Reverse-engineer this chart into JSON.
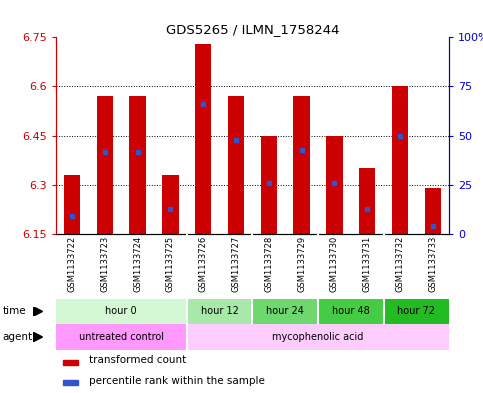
{
  "title": "GDS5265 / ILMN_1758244",
  "samples": [
    "GSM1133722",
    "GSM1133723",
    "GSM1133724",
    "GSM1133725",
    "GSM1133726",
    "GSM1133727",
    "GSM1133728",
    "GSM1133729",
    "GSM1133730",
    "GSM1133731",
    "GSM1133732",
    "GSM1133733"
  ],
  "bar_tops": [
    6.33,
    6.57,
    6.57,
    6.33,
    6.73,
    6.57,
    6.45,
    6.57,
    6.45,
    6.35,
    6.6,
    6.29
  ],
  "bar_base": 6.15,
  "blue_dots": [
    6.205,
    6.4,
    6.4,
    6.225,
    6.545,
    6.435,
    6.305,
    6.405,
    6.305,
    6.225,
    6.45,
    6.175
  ],
  "ylim": [
    6.15,
    6.75
  ],
  "yticks_left": [
    6.15,
    6.3,
    6.45,
    6.6,
    6.75
  ],
  "yticks_right": [
    "0",
    "25",
    "50",
    "75",
    "100%"
  ],
  "yticks_right_vals": [
    6.15,
    6.3,
    6.45,
    6.6,
    6.75
  ],
  "bar_color": "#cc0000",
  "blue_color": "#3355cc",
  "bg_color": "#ffffff",
  "plot_bg": "#ffffff",
  "time_groups": [
    {
      "label": "hour 0",
      "span": [
        0,
        3
      ],
      "bg": "#d4f7d4"
    },
    {
      "label": "hour 12",
      "span": [
        4,
        5
      ],
      "bg": "#a8e8a8"
    },
    {
      "label": "hour 24",
      "span": [
        6,
        7
      ],
      "bg": "#6ed86e"
    },
    {
      "label": "hour 48",
      "span": [
        8,
        9
      ],
      "bg": "#44cc44"
    },
    {
      "label": "hour 72",
      "span": [
        10,
        11
      ],
      "bg": "#22bb22"
    }
  ],
  "agent_groups": [
    {
      "label": "untreated control",
      "span": [
        0,
        3
      ],
      "bg": "#ff99ff"
    },
    {
      "label": "mycophenolic acid",
      "span": [
        4,
        11
      ],
      "bg": "#ffccff"
    }
  ],
  "bar_width": 0.5,
  "sample_bg_color": "#c8c8c8",
  "left_axis_color": "#cc0000",
  "right_axis_color": "#0000cc"
}
